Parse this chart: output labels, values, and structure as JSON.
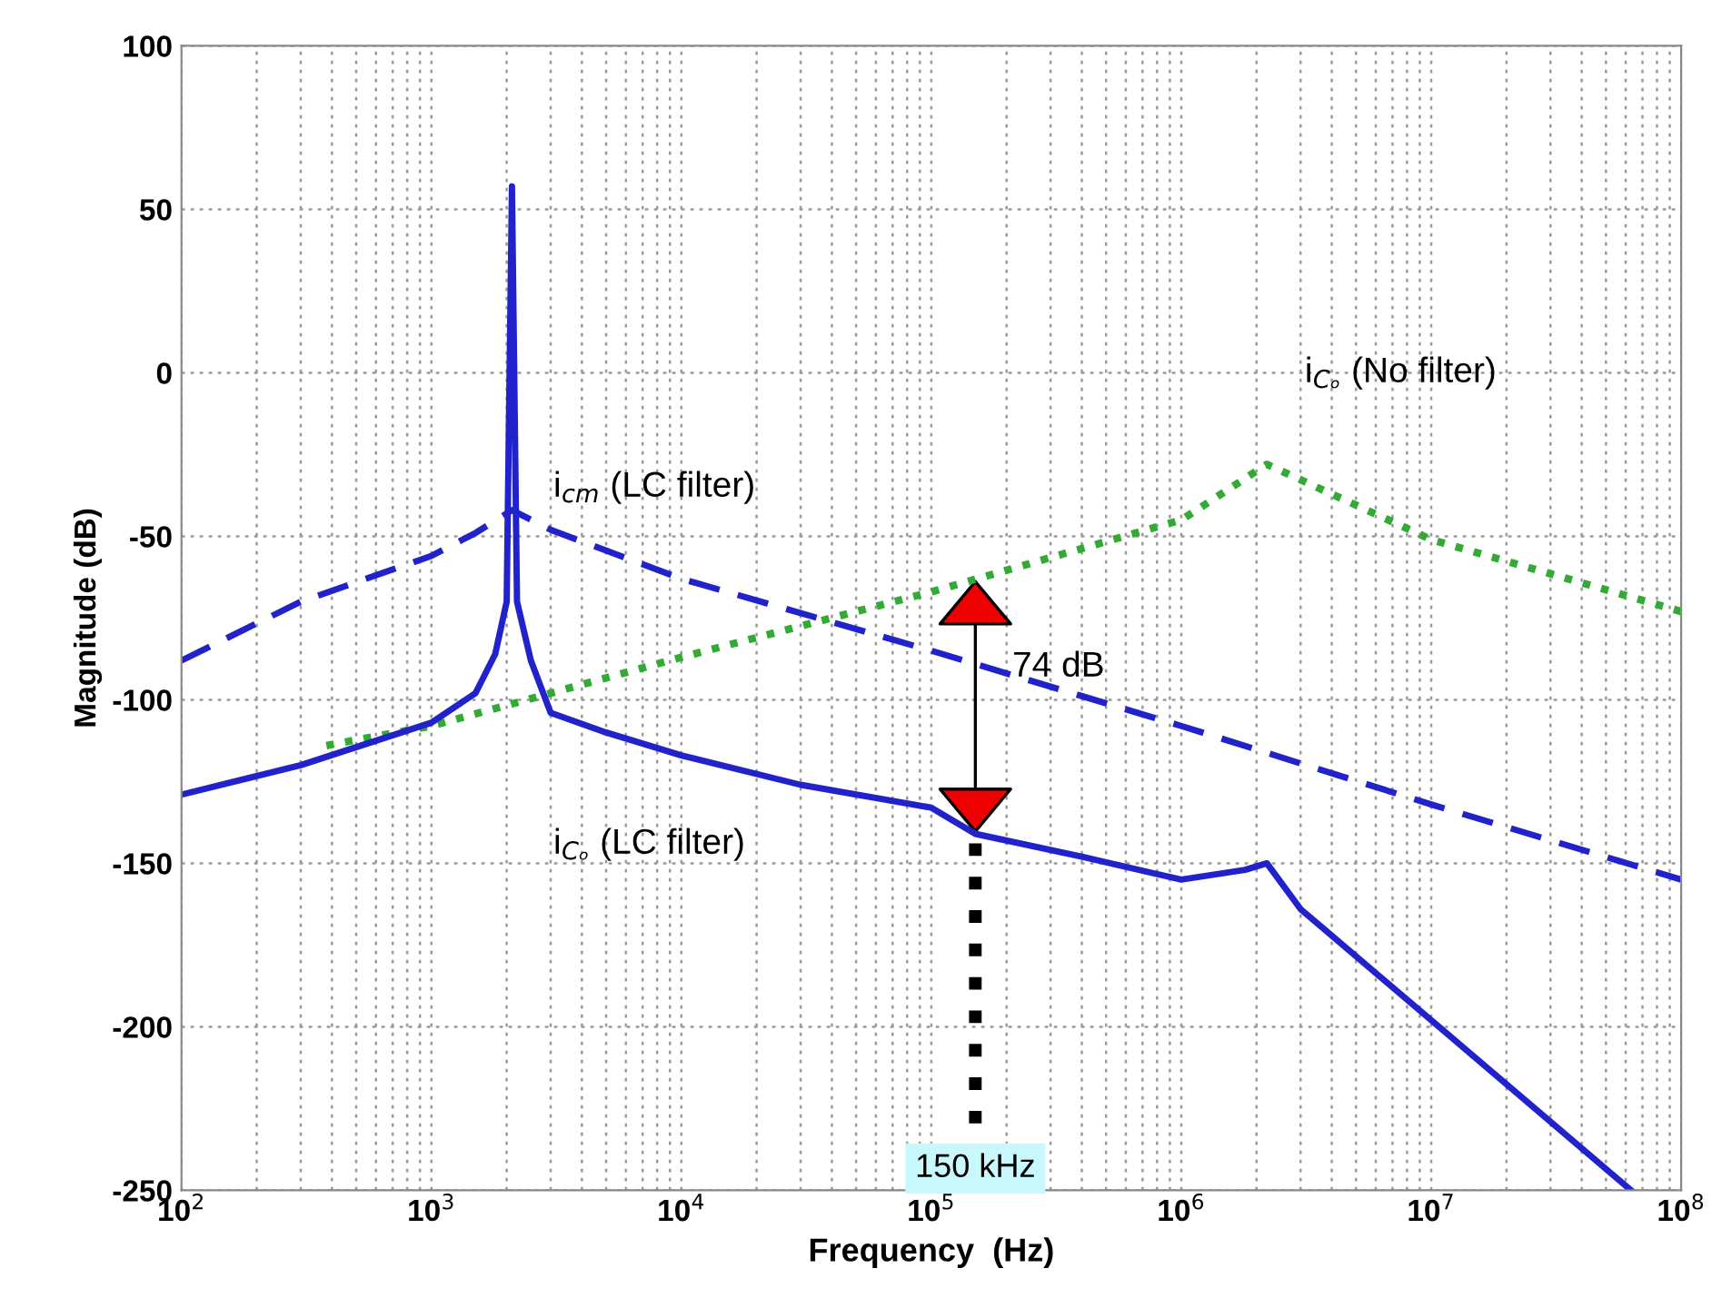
{
  "chart_data": {
    "type": "line",
    "xlabel": "Frequency  (Hz)",
    "ylabel": "Magnitude (dB)",
    "log": "x",
    "grid": true,
    "xlim": [
      100,
      100000000
    ],
    "ylim": [
      -250,
      100
    ],
    "xticks": [
      {
        "value": 100,
        "label": "10$^{2}$"
      },
      {
        "value": 1000,
        "label": "10$^{3}$"
      },
      {
        "value": 10000,
        "label": "10$^{4}$"
      },
      {
        "value": 100000,
        "label": "10$^{5}$"
      },
      {
        "value": 1000000,
        "label": "10$^{6}$"
      },
      {
        "value": 10000000,
        "label": "10$^{7}$"
      },
      {
        "value": 100000000,
        "label": "10$^{8}$"
      }
    ],
    "yticks": [
      -250,
      -200,
      -150,
      -100,
      -50,
      0,
      50,
      100
    ],
    "series": [
      {
        "color": "#2222cc",
        "line_style": "dashed",
        "x": [
          100,
          300,
          1000,
          1500,
          2100,
          3000,
          10000,
          100000,
          1000000,
          10000000,
          100000000
        ],
        "values": [
          -88,
          -70,
          -56,
          -49,
          -42,
          -48,
          -63,
          -85,
          -108,
          -132,
          -155
        ]
      },
      {
        "color": "#33aa33",
        "line_style": "dotted",
        "x": [
          380,
          1000,
          10000,
          100000,
          1000000,
          2200000,
          10000000,
          100000000
        ],
        "values": [
          -114,
          -108,
          -87,
          -67,
          -45,
          -28,
          -51,
          -73
        ]
      },
      {
        "color": "#2222cc",
        "line_style": "solid",
        "x": [
          100,
          300,
          1000,
          1500,
          1800,
          2000,
          2100,
          2200,
          2500,
          3000,
          5000,
          10000,
          30000,
          100000,
          150000,
          400000,
          1000000,
          1800000,
          2200000,
          3000000,
          10000000,
          63000000
        ],
        "values": [
          -129,
          -120,
          -107,
          -98,
          -86,
          -70,
          57,
          -70,
          -88,
          -104,
          -110,
          -117,
          -126,
          -133,
          -141,
          -148,
          -155,
          -152,
          -150,
          -164,
          -198,
          -250
        ]
      }
    ],
    "annotations": [
      "i$_{cm}$ (LC filter)",
      "i$_{Cₒ}$ (No filter)",
      "i$_{Cₒ}$ (LC filter)",
      "74 dB"
    ],
    "ref_lines": [
      {
        "axis": "x",
        "value": 150000,
        "label": "150 kHz",
        "color": "#000000",
        "line_style": "dotted"
      }
    ]
  }
}
